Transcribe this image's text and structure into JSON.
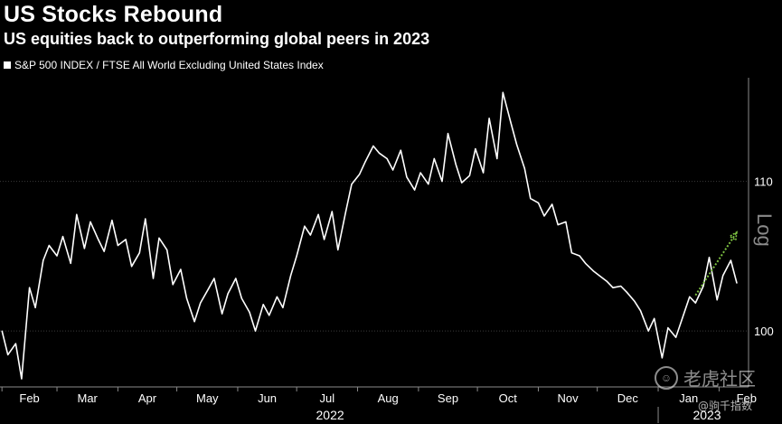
{
  "header": {
    "title": "US Stocks Rebound",
    "subtitle": "US equities back to outperforming global peers in 2023"
  },
  "legend": {
    "label": "S&P 500 INDEX / FTSE All World Excluding United States Index"
  },
  "watermark": {
    "logo_text": "☺",
    "text": "老虎社区",
    "text2": "@驹千指数"
  },
  "chart_data": {
    "type": "line",
    "title": "US Stocks Rebound",
    "subtitle": "US equities back to outperforming global peers in 2023",
    "scale": "log",
    "ylabel": "Log",
    "ylim": [
      96.5,
      117.5
    ],
    "yticks": [
      100,
      110
    ],
    "grid": true,
    "colors": {
      "background": "#000000",
      "line": "#ffffff",
      "grid": "#3a3a3a",
      "arrow": "#7dc242"
    },
    "x_month_labels": [
      "Feb",
      "Mar",
      "Apr",
      "May",
      "Jun",
      "Jul",
      "Aug",
      "Sep",
      "Oct",
      "Nov",
      "Dec",
      "Jan",
      "Feb"
    ],
    "x_year_labels": [
      "2022",
      "2023"
    ],
    "series": [
      {
        "name": "S&P 500 INDEX / FTSE All World Excluding United States Index",
        "x": [
          "2022-02-01",
          "2022-02-04",
          "2022-02-08",
          "2022-02-11",
          "2022-02-15",
          "2022-02-18",
          "2022-02-22",
          "2022-02-25",
          "2022-03-01",
          "2022-03-04",
          "2022-03-08",
          "2022-03-11",
          "2022-03-15",
          "2022-03-18",
          "2022-03-22",
          "2022-03-25",
          "2022-03-29",
          "2022-04-01",
          "2022-04-05",
          "2022-04-08",
          "2022-04-12",
          "2022-04-15",
          "2022-04-19",
          "2022-04-22",
          "2022-04-26",
          "2022-04-29",
          "2022-05-03",
          "2022-05-06",
          "2022-05-10",
          "2022-05-13",
          "2022-05-17",
          "2022-05-20",
          "2022-05-24",
          "2022-05-27",
          "2022-05-31",
          "2022-06-03",
          "2022-06-07",
          "2022-06-10",
          "2022-06-14",
          "2022-06-17",
          "2022-06-21",
          "2022-06-24",
          "2022-06-28",
          "2022-07-01",
          "2022-07-05",
          "2022-07-08",
          "2022-07-12",
          "2022-07-15",
          "2022-07-19",
          "2022-07-22",
          "2022-07-26",
          "2022-07-29",
          "2022-08-02",
          "2022-08-05",
          "2022-08-09",
          "2022-08-12",
          "2022-08-16",
          "2022-08-19",
          "2022-08-23",
          "2022-08-26",
          "2022-08-30",
          "2022-09-02",
          "2022-09-06",
          "2022-09-09",
          "2022-09-13",
          "2022-09-16",
          "2022-09-20",
          "2022-09-23",
          "2022-09-27",
          "2022-09-30",
          "2022-10-04",
          "2022-10-07",
          "2022-10-11",
          "2022-10-14",
          "2022-10-18",
          "2022-10-21",
          "2022-10-25",
          "2022-10-28",
          "2022-11-01",
          "2022-11-04",
          "2022-11-08",
          "2022-11-11",
          "2022-11-15",
          "2022-11-18",
          "2022-11-22",
          "2022-11-25",
          "2022-11-29",
          "2022-12-02",
          "2022-12-06",
          "2022-12-09",
          "2022-12-13",
          "2022-12-16",
          "2022-12-20",
          "2022-12-23",
          "2022-12-27",
          "2022-12-30",
          "2023-01-03",
          "2023-01-06",
          "2023-01-10",
          "2023-01-13",
          "2023-01-17",
          "2023-01-20",
          "2023-01-24",
          "2023-01-27",
          "2023-01-31",
          "2023-02-03",
          "2023-02-07",
          "2023-02-10"
        ],
        "values": [
          100.0,
          98.5,
          99.2,
          97.0,
          102.8,
          101.5,
          104.6,
          105.6,
          104.9,
          106.2,
          104.4,
          107.7,
          105.4,
          107.2,
          106.0,
          105.2,
          107.3,
          105.6,
          106.0,
          104.2,
          105.1,
          107.4,
          103.4,
          106.1,
          105.3,
          103.0,
          104.0,
          102.1,
          100.6,
          101.8,
          102.7,
          103.4,
          101.1,
          102.4,
          103.4,
          102.1,
          101.2,
          100.0,
          101.7,
          101.0,
          102.2,
          101.5,
          103.6,
          104.9,
          106.9,
          106.3,
          107.7,
          106.0,
          107.9,
          105.3,
          107.9,
          109.8,
          110.5,
          111.4,
          112.5,
          112.0,
          111.6,
          110.8,
          112.2,
          110.3,
          109.4,
          110.6,
          109.8,
          111.6,
          110.0,
          113.4,
          111.2,
          109.9,
          110.4,
          112.3,
          110.6,
          114.5,
          111.6,
          116.4,
          114.2,
          112.6,
          110.9,
          108.8,
          108.5,
          107.6,
          108.4,
          107.0,
          107.2,
          105.1,
          104.9,
          104.4,
          103.9,
          103.6,
          103.2,
          102.8,
          102.9,
          102.5,
          101.9,
          101.3,
          100.0,
          100.8,
          98.3,
          100.2,
          99.6,
          100.7,
          102.2,
          101.8,
          102.9,
          104.8,
          102.0,
          103.6,
          104.6,
          103.1
        ]
      }
    ],
    "annotations": [
      {
        "type": "arrow",
        "direction": "up-right",
        "from": [
          "2023-01-20",
          102.3
        ],
        "to": [
          "2023-02-10",
          106.5
        ]
      }
    ]
  }
}
